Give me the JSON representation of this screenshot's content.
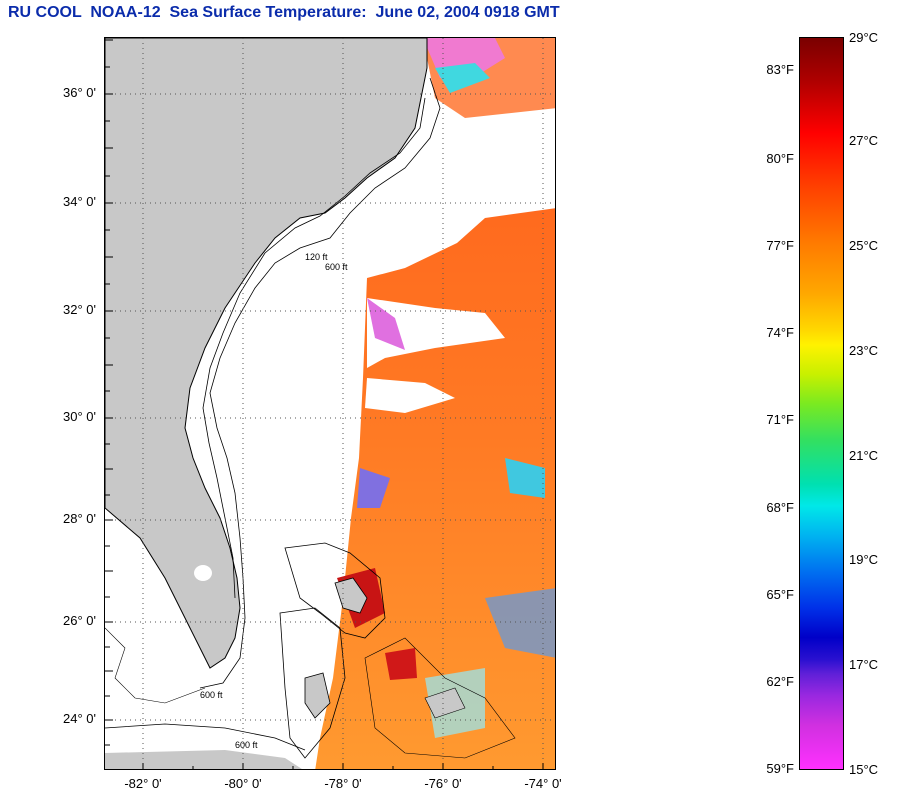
{
  "title": "RU COOL  NOAA-12  Sea Surface Temperature:  June 02, 2004 0918 GMT",
  "map": {
    "lat_labels": [
      "36° 0'",
      "34° 0'",
      "32° 0'",
      "30° 0'",
      "28° 0'",
      "26° 0'",
      "24° 0'"
    ],
    "lon_labels": [
      "-82° 0'",
      "-80° 0'",
      "-78° 0'",
      "-76° 0'",
      "-74° 0'"
    ],
    "contour_labels": [
      "600 ft",
      "120 ft"
    ],
    "colors": {
      "land": "#c8c8c8",
      "cloud": "#ffffff",
      "grid": "#555555"
    }
  },
  "scale": {
    "fahrenheit": [
      "83°F",
      "80°F",
      "77°F",
      "74°F",
      "71°F",
      "68°F",
      "65°F",
      "62°F",
      "59°F"
    ],
    "celsius": [
      "29°C",
      "27°C",
      "25°C",
      "23°C",
      "21°C",
      "19°C",
      "17°C",
      "15°C"
    ]
  }
}
